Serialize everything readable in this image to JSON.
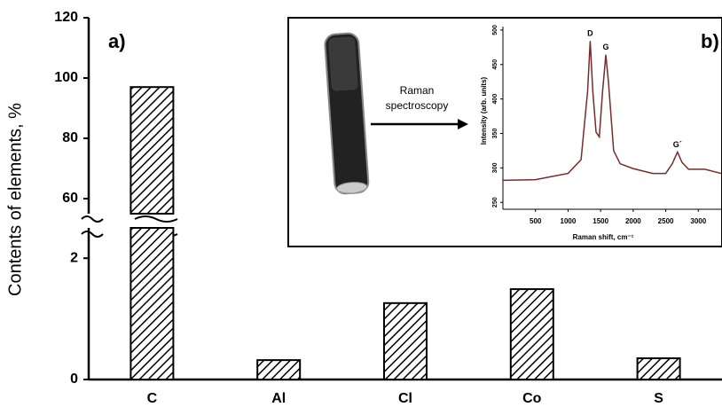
{
  "chart_data": [
    {
      "type": "bar",
      "annotation": "a)",
      "ylabel": "Contents of elements, %",
      "categories": [
        "C",
        "Al",
        "Cl",
        "Co",
        "S"
      ],
      "values": [
        97,
        0.32,
        1.26,
        1.49,
        0.35
      ],
      "color": "#000000",
      "hatch": true,
      "y_break": [
        {
          "ylim": [
            0,
            2.5
          ],
          "yticks": [
            0,
            2
          ]
        },
        {
          "ylim": [
            55,
            120
          ],
          "yticks": [
            60,
            80,
            100,
            120
          ]
        }
      ]
    },
    {
      "type": "line",
      "annotation": "b)",
      "xlabel": "Raman shift, cm⁻¹",
      "ylabel": "Intensity (arb. units)",
      "arrow_label": [
        "Raman",
        "spectroscopy"
      ],
      "x": [
        0,
        500,
        1000,
        1200,
        1300,
        1340,
        1380,
        1430,
        1480,
        1530,
        1580,
        1620,
        1700,
        1800,
        2000,
        2300,
        2500,
        2600,
        2680,
        2750,
        2850,
        3100,
        3350
      ],
      "series": [
        {
          "color": "#7a2a2a",
          "values": [
            282,
            283,
            292,
            312,
            411,
            484,
            411,
            352,
            345,
            411,
            464,
            425,
            325,
            306,
            299,
            292,
            292,
            306,
            323,
            308,
            298,
            298,
            292
          ]
        }
      ],
      "xlim": [
        0,
        3350
      ],
      "ylim": [
        240,
        505
      ],
      "xticks": [
        500,
        1000,
        1500,
        2000,
        2500,
        3000
      ],
      "yticks": [
        250,
        300,
        350,
        400,
        450,
        500
      ],
      "peak_labels": [
        {
          "label": "D",
          "x": 1340,
          "y": 484
        },
        {
          "label": "G",
          "x": 1580,
          "y": 464
        },
        {
          "label": "G´",
          "x": 2680,
          "y": 323
        }
      ]
    }
  ]
}
